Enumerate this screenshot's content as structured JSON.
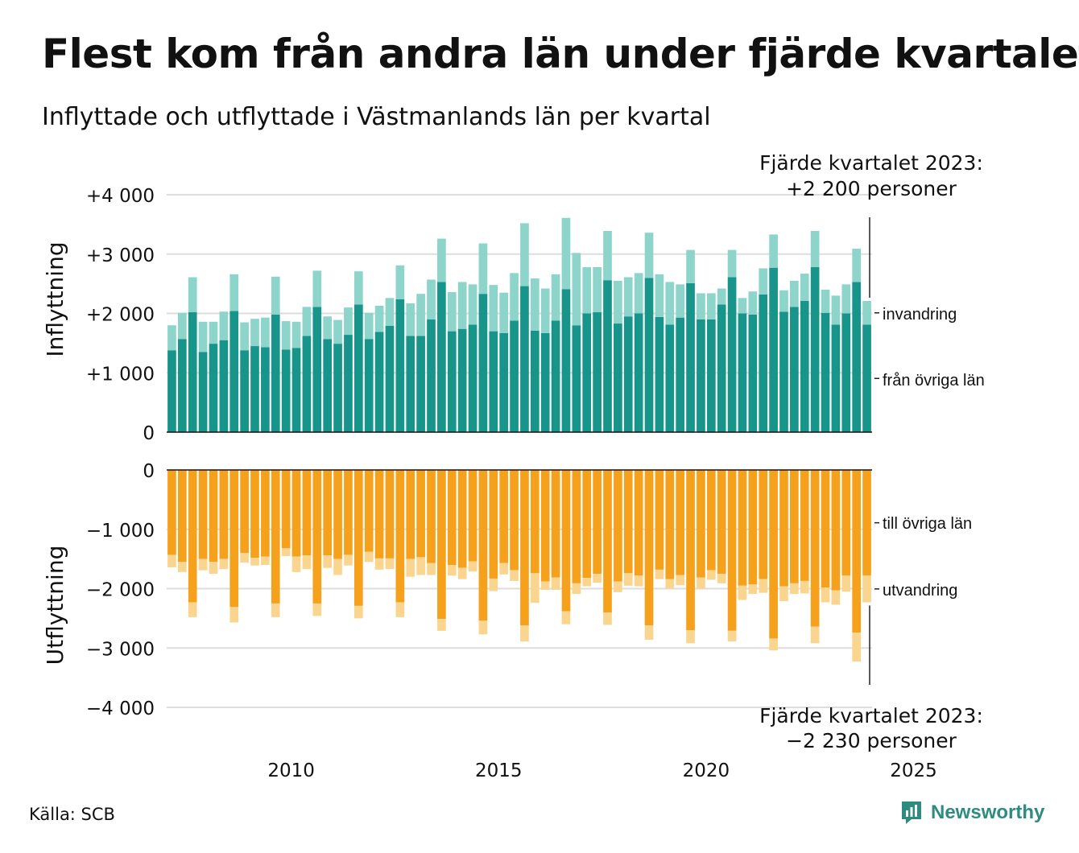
{
  "title": "Flest kom från andra län under fjärde kvartalet",
  "subtitle": "Inflyttade och utflyttade i Västmanlands län per kvartal",
  "source": "Källa: SCB",
  "brand": "Newsworthy",
  "annotations": {
    "top": [
      "Fjärde kvartalet 2023:",
      "+2 200 personer"
    ],
    "bottom": [
      "Fjärde kvartalet 2023:",
      "−2 230 personer"
    ]
  },
  "colors": {
    "inflow_domestic": "#17958a",
    "inflow_immigration": "#8dd4cb",
    "outflow_domestic": "#f5a11c",
    "outflow_emigration": "#fad58f",
    "gridline": "#dddddd",
    "brand": "#2e8b80"
  },
  "chart_data": {
    "type": "bar",
    "stacked": true,
    "x_start": "2007 Q1",
    "x_end": "2023 Q4",
    "x_ticks": [
      "2010",
      "2015",
      "2020",
      "2025"
    ],
    "panels": [
      {
        "ylabel": "Inflyttning",
        "ylim": [
          0,
          4000
        ],
        "yticks": [
          "0",
          "+1 000",
          "+2 000",
          "+3 000",
          "+4 000"
        ],
        "series": [
          {
            "name": "från övriga län",
            "values": [
              1380,
              1570,
              2020,
              1350,
              1490,
              1550,
              2040,
              1380,
              1450,
              1430,
              1980,
              1390,
              1420,
              1620,
              2110,
              1570,
              1490,
              1640,
              2150,
              1570,
              1690,
              1790,
              2240,
              1620,
              1620,
              1900,
              2530,
              1700,
              1740,
              1810,
              2330,
              1700,
              1670,
              1880,
              2460,
              1710,
              1670,
              1880,
              2410,
              1800,
              2000,
              2020,
              2560,
              1830,
              1950,
              2000,
              2600,
              1940,
              1810,
              1930,
              2510,
              1900,
              1900,
              2150,
              2610,
              2000,
              1980,
              2320,
              2770,
              2030,
              2110,
              2210,
              2780,
              2010,
              1810,
              2000,
              2530,
              1810
            ]
          },
          {
            "name": "invandring",
            "values": [
              420,
              440,
              590,
              510,
              370,
              480,
              620,
              470,
              460,
              500,
              640,
              480,
              440,
              490,
              610,
              380,
              400,
              460,
              560,
              440,
              440,
              470,
              570,
              550,
              710,
              670,
              730,
              660,
              790,
              680,
              850,
              780,
              680,
              800,
              1060,
              880,
              750,
              780,
              1200,
              1220,
              780,
              760,
              830,
              720,
              660,
              680,
              760,
              720,
              720,
              560,
              560,
              440,
              440,
              270,
              460,
              260,
              390,
              440,
              560,
              360,
              440,
              460,
              610,
              390,
              490,
              490,
              560,
              400
            ]
          }
        ]
      },
      {
        "ylabel": "Utflyttning",
        "ylim": [
          -4000,
          0
        ],
        "yticks": [
          "0",
          "−1 000",
          "−2 000",
          "−3 000",
          "−4 000"
        ],
        "series": [
          {
            "name": "till övriga län",
            "values": [
              -1430,
              -1550,
              -2230,
              -1500,
              -1550,
              -1500,
              -2310,
              -1400,
              -1480,
              -1460,
              -2250,
              -1320,
              -1460,
              -1440,
              -2250,
              -1440,
              -1500,
              -1430,
              -2290,
              -1380,
              -1490,
              -1490,
              -2230,
              -1500,
              -1470,
              -1570,
              -2510,
              -1600,
              -1650,
              -1540,
              -2540,
              -1830,
              -1570,
              -1690,
              -2620,
              -1740,
              -1880,
              -1810,
              -2380,
              -1910,
              -1820,
              -1750,
              -2400,
              -1880,
              -1740,
              -1780,
              -2620,
              -1680,
              -1840,
              -1770,
              -2700,
              -1810,
              -1690,
              -1750,
              -2710,
              -1950,
              -1930,
              -1840,
              -2840,
              -1960,
              -1910,
              -1870,
              -2640,
              -1980,
              -2030,
              -1780,
              -2740,
              -1780
            ]
          },
          {
            "name": "utvandring",
            "values": [
              -210,
              -170,
              -250,
              -190,
              -200,
              -170,
              -260,
              -160,
              -130,
              -140,
              -230,
              -130,
              -260,
              -230,
              -210,
              -210,
              -270,
              -180,
              -210,
              -170,
              -190,
              -180,
              -250,
              -300,
              -300,
              -200,
              -200,
              -180,
              -190,
              -170,
              -230,
              -210,
              -190,
              -180,
              -270,
              -500,
              -140,
              -210,
              -220,
              -180,
              -140,
              -150,
              -210,
              -180,
              -210,
              -180,
              -240,
              -160,
              -160,
              -170,
              -220,
              -190,
              -160,
              -160,
              -180,
              -240,
              -160,
              -230,
              -200,
              -250,
              -180,
              -210,
              -280,
              -250,
              -240,
              -270,
              -490,
              -450
            ]
          }
        ]
      }
    ]
  }
}
